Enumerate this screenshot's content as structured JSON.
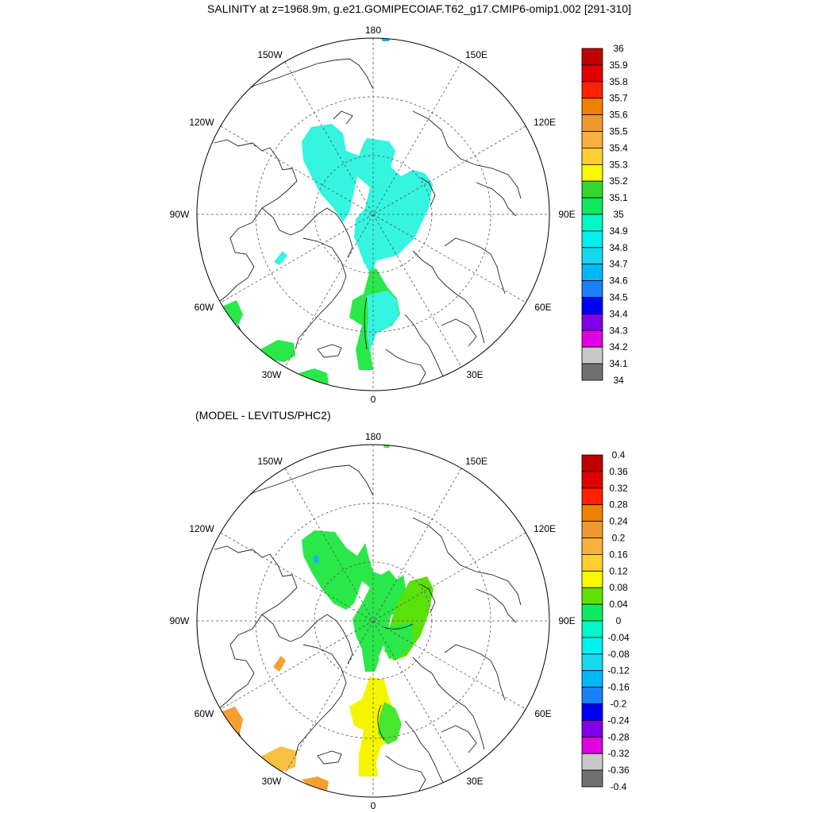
{
  "title": "SALINITY at z=1968.9m, g.e21.GOMIPECOIAF.T62_g17.CMIP6-omip1.002 [291-310]",
  "subtitle": "(MODEL - LEVITUS/PHC2)",
  "longitude_labels": {
    "lon_180": "180",
    "lon_150W": "150W",
    "lon_150E": "150E",
    "lon_120W": "120W",
    "lon_120E": "120E",
    "lon_90W": "90W",
    "lon_90E": "90E",
    "lon_60W": "60W",
    "lon_60E": "60E",
    "lon_30W": "30W",
    "lon_30E": "30E",
    "lon_0": "0"
  },
  "colors": {
    "cyan": "#35f5e0",
    "green": "#2ae84a",
    "bright_green": "#48e830",
    "lime": "#5ae00a",
    "yellow": "#f5f500",
    "orange": "#f5a030",
    "light_orange": "#f8c040",
    "blue_patch": "#1ab0f0"
  },
  "colorbar_top": {
    "labels": [
      "36",
      "35.9",
      "35.8",
      "35.7",
      "35.6",
      "35.5",
      "35.4",
      "35.3",
      "35.2",
      "35.1",
      "35",
      "34.9",
      "34.8",
      "34.7",
      "34.6",
      "34.5",
      "34.4",
      "34.3",
      "34.2",
      "34.1",
      "34"
    ],
    "colors": [
      "#c00000",
      "#e00000",
      "#ff2000",
      "#f08000",
      "#f09830",
      "#f8b040",
      "#ffd030",
      "#f8f800",
      "#30d830",
      "#10e860",
      "#00f8c8",
      "#00f0f0",
      "#18d8f0",
      "#00b8f8",
      "#1880f8",
      "#0000f8",
      "#8000e8",
      "#e000e0",
      "#c8c8c8",
      "#707070"
    ]
  },
  "colorbar_bottom": {
    "labels": [
      "0.4",
      "0.36",
      "0.32",
      "0.28",
      "0.24",
      "0.2",
      "0.16",
      "0.12",
      "0.08",
      "0.04",
      "0",
      "-0.04",
      "-0.08",
      "-0.12",
      "-0.16",
      "-0.2",
      "-0.24",
      "-0.28",
      "-0.32",
      "-0.36",
      "-0.4"
    ],
    "colors": [
      "#c00000",
      "#e00000",
      "#ff2000",
      "#f08000",
      "#f09830",
      "#f8b040",
      "#ffd030",
      "#f8f800",
      "#60e000",
      "#10e860",
      "#00f8c8",
      "#00f0f0",
      "#18d8f0",
      "#00b8f8",
      "#1880f8",
      "#0000f8",
      "#8000e8",
      "#e000e0",
      "#c8c8c8",
      "#707070"
    ]
  }
}
